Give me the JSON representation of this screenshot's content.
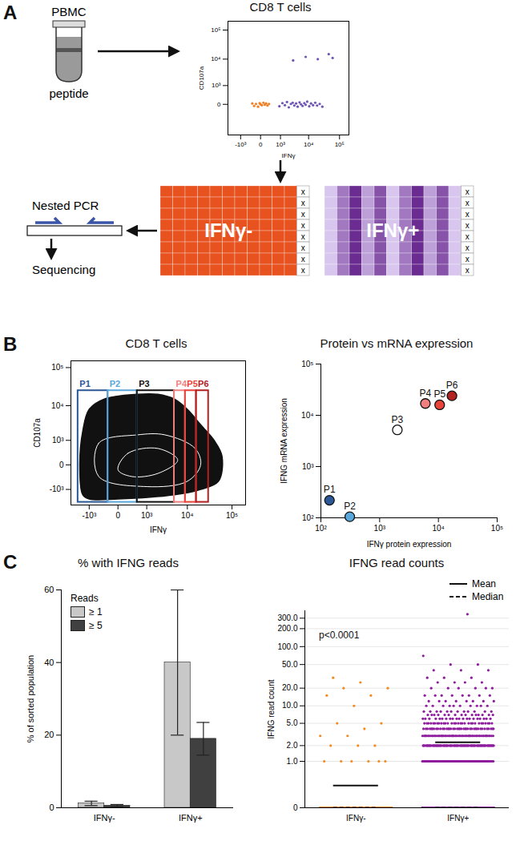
{
  "panel_labels": [
    "A",
    "B",
    "C"
  ],
  "diagram": {
    "tube_label": "PBMC",
    "tube_content_label": "peptide",
    "plates": [
      {
        "label": "IFNγ-",
        "color": "#e8521f"
      },
      {
        "label": "IFNγ+",
        "color": "#6b2c91"
      }
    ],
    "plate_marker": "x",
    "pcr_label": "Nested PCR",
    "sequencing_label": "Sequencing"
  },
  "chart_data": [
    {
      "type": "scatter",
      "title": "CD8 T cells",
      "x_label": "IFNγ",
      "y_label": "CD107a",
      "log": true,
      "xlim": [
        -3000,
        200000
      ],
      "ylim": [
        -3000,
        200000
      ],
      "xticks": [
        {
          "value": -1000,
          "label": "-10³"
        },
        0,
        {
          "value": 1000,
          "label": "10³"
        },
        {
          "value": 10000,
          "label": "10⁴"
        },
        {
          "value": 100000,
          "label": "10⁵"
        }
      ],
      "yticks": [
        0,
        {
          "value": 1000,
          "label": "10³"
        },
        {
          "value": 10000,
          "label": "10⁴"
        },
        {
          "value": 100000,
          "label": "10⁵"
        }
      ],
      "series": [
        {
          "color": "#f07f25",
          "x": [
            -250,
            -180,
            -120,
            -60,
            -20,
            0,
            30,
            70,
            110,
            150,
            200,
            260
          ],
          "y": [
            20,
            -40,
            10,
            -60,
            30,
            0,
            -20,
            40,
            -10,
            20,
            -30,
            10
          ]
        },
        {
          "color": "#6f55b5",
          "x": [
            900,
            1200,
            1500,
            1800,
            2100,
            2500,
            2900,
            3300,
            3800,
            4300,
            5000,
            5600,
            6300,
            7200,
            8000,
            9000,
            10500,
            12000,
            14000,
            16500,
            19000,
            23000,
            28000,
            3000,
            8000,
            20000,
            45000,
            60000
          ],
          "y": [
            -50,
            30,
            -20,
            60,
            -80,
            10,
            40,
            -30,
            20,
            -60,
            50,
            0,
            -40,
            30,
            -10,
            70,
            -50,
            20,
            -20,
            40,
            -30,
            10,
            -60,
            9000,
            12000,
            10000,
            15000,
            11000
          ]
        }
      ]
    },
    {
      "type": "density",
      "title": "CD8 T cells",
      "x_label": "IFNγ",
      "y_label": "CD107a",
      "log": true,
      "xlim": [
        -3000,
        200000
      ],
      "ylim": [
        -3000,
        150000
      ],
      "xticks": [
        {
          "value": -1000,
          "label": "-10³"
        },
        0,
        {
          "value": 1000,
          "label": "10³"
        },
        {
          "value": 10000,
          "label": "10⁴"
        },
        {
          "value": 100000,
          "label": "10⁵"
        }
      ],
      "yticks": [
        {
          "value": -1000,
          "label": "-10³"
        },
        0,
        {
          "value": 1000,
          "label": "10³"
        },
        {
          "value": 10000,
          "label": "10⁴"
        },
        {
          "value": 100000,
          "label": "10⁵"
        }
      ],
      "gates": [
        {
          "name": "P1",
          "color": "#2b5797",
          "x": [
            -2000,
            -200
          ],
          "y": [
            -2500,
            25000
          ]
        },
        {
          "name": "P2",
          "color": "#5aa7dc",
          "x": [
            -200,
            500
          ],
          "y": [
            -2500,
            25000
          ]
        },
        {
          "name": "P3",
          "color": "#111111",
          "x": [
            500,
            5000
          ],
          "y": [
            -2500,
            25000
          ]
        },
        {
          "name": "P4",
          "color": "#f08080",
          "x": [
            5000,
            9000
          ],
          "y": [
            -2500,
            25000
          ]
        },
        {
          "name": "P5",
          "color": "#e8443a",
          "x": [
            9000,
            16000
          ],
          "y": [
            -2500,
            25000
          ]
        },
        {
          "name": "P6",
          "color": "#b22222",
          "x": [
            16000,
            30000
          ],
          "y": [
            -2500,
            25000
          ]
        }
      ],
      "cloud": {
        "x": [
          -1500,
          -1800,
          -1500,
          -1000,
          -300,
          500,
          2000,
          5000,
          10000,
          20000,
          40000,
          60000,
          50000,
          20000,
          5000,
          0,
          -1000
        ],
        "y": [
          -1500,
          0,
          2000,
          8000,
          15000,
          20000,
          20000,
          15000,
          8000,
          3000,
          1000,
          200,
          -500,
          -1000,
          -1500,
          -2000,
          -2000
        ]
      },
      "contours": [
        {
          "x": [
            -500,
            -500,
            500,
            3000,
            15000,
            20000,
            10000,
            1000
          ],
          "y": [
            -300,
            800,
            1500,
            1500,
            500,
            0,
            -500,
            -800
          ]
        },
        {
          "x": [
            0,
            200,
            2000,
            6000,
            2000,
            300
          ],
          "y": [
            -100,
            300,
            500,
            100,
            -200,
            -300
          ]
        }
      ]
    },
    {
      "type": "scatter",
      "title": "Protein vs mRNA expression",
      "x_label": "IFNγ protein expression",
      "y_label": "IFNG mRNA expression",
      "log": true,
      "xlim": [
        100,
        100000
      ],
      "ylim": [
        100,
        100000
      ],
      "xticks": [
        {
          "value": 100,
          "label": "10²"
        },
        {
          "value": 1000,
          "label": "10³"
        },
        {
          "value": 10000,
          "label": "10⁴"
        },
        {
          "value": 100000,
          "label": "10⁵"
        }
      ],
      "yticks": [
        {
          "value": 100,
          "label": "10²"
        },
        {
          "value": 1000,
          "label": "10³"
        },
        {
          "value": 10000,
          "label": "10⁴"
        },
        {
          "value": 100000,
          "label": "10⁵"
        }
      ],
      "categories": [
        "P1",
        "P2",
        "P3",
        "P4",
        "P5",
        "P6"
      ],
      "x": [
        140,
        310,
        2000,
        6000,
        10500,
        17000
      ],
      "y": [
        220,
        105,
        5200,
        17000,
        16000,
        24000
      ],
      "colors": [
        "#2b5797",
        "#5aa7dc",
        "#ffffff",
        "#f08080",
        "#e8443a",
        "#b22222"
      ],
      "data_labels": true
    },
    {
      "type": "bar",
      "title": "% with IFNG reads",
      "y_label": "% of sorted population",
      "categories": [
        "IFNγ-",
        "IFNγ+"
      ],
      "series": [
        {
          "name": "≥ 1",
          "color": "#c8c8c8",
          "values": [
            1.2,
            40
          ],
          "errors": [
            0.6,
            20
          ]
        },
        {
          "name": "≥ 5",
          "color": "#404040",
          "values": [
            0.6,
            19
          ],
          "errors": [
            0.3,
            4.5
          ]
        }
      ],
      "ylim": [
        0,
        60
      ],
      "yticks": [
        0,
        20,
        40,
        60
      ],
      "legend": "top-left",
      "legend_title": "Reads"
    },
    {
      "type": "strip",
      "title": "IFNG read counts",
      "y_label": "IFNG read count",
      "log": "y",
      "categories": [
        "IFNγ-",
        "IFNγ+"
      ],
      "colors": [
        "#f28a1e",
        "#8e1e9e"
      ],
      "values": [
        [
          0,
          1,
          2,
          3,
          4,
          5,
          10,
          15,
          20,
          25,
          30
        ],
        [
          0,
          1,
          2,
          3,
          4,
          5,
          6,
          7,
          8,
          10,
          12,
          15,
          20,
          25,
          30,
          40,
          50,
          70,
          350
        ]
      ],
      "counts": [
        [
          600,
          6,
          3,
          2,
          1,
          2,
          1,
          2,
          2,
          1,
          1
        ],
        [
          600,
          120,
          80,
          60,
          40,
          30,
          20,
          15,
          12,
          10,
          8,
          8,
          6,
          4,
          3,
          3,
          2,
          1,
          1
        ]
      ],
      "means": [
        0.27,
        2.3
      ],
      "medians": [
        0,
        0
      ],
      "ylim": [
        0,
        400
      ],
      "yticks": [
        0,
        {
          "value": 1,
          "label": "1.0"
        },
        {
          "value": 2,
          "label": "2.0"
        },
        {
          "value": 5,
          "label": "5.0"
        },
        {
          "value": 10,
          "label": "10.0"
        },
        {
          "value": 20,
          "label": "20.0"
        },
        {
          "value": 50,
          "label": "50.0"
        },
        {
          "value": 100,
          "label": "100.0"
        },
        {
          "value": 200,
          "label": "200.0"
        },
        {
          "value": 300,
          "label": "300.0"
        }
      ],
      "grid": true,
      "annotation": "p<0.0001",
      "legend": "top-right",
      "legend_entries": [
        {
          "name": "Mean",
          "line_style": "solid"
        },
        {
          "name": "Median",
          "line_style": "dashed"
        }
      ]
    }
  ]
}
